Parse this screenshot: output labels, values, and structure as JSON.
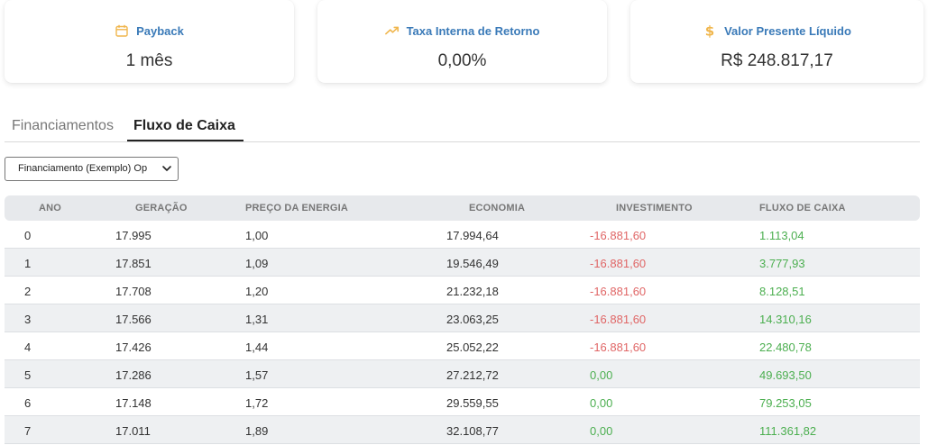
{
  "cards": [
    {
      "label": "Payback",
      "value": "1 mês",
      "icon": "calendar-icon",
      "icon_color": "#f0b64d"
    },
    {
      "label": "Taxa Interna de Retorno",
      "value": "0,00%",
      "icon": "trending-up-icon",
      "icon_color": "#f0b64d"
    },
    {
      "label": "Valor Presente Líquido",
      "value": "R$ 248.817,17",
      "icon": "dollar-icon",
      "icon_color": "#f0b64d"
    }
  ],
  "tabs": [
    {
      "label": "Financiamentos",
      "active": false
    },
    {
      "label": "Fluxo de Caixa",
      "active": true
    }
  ],
  "select": {
    "value": "Financiamento (Exemplo) Op"
  },
  "table": {
    "headers": [
      "ANO",
      "GERAÇÃO",
      "PREÇO DA ENERGIA",
      "ECONOMIA",
      "INVESTIMENTO",
      "FLUXO DE CAIXA"
    ],
    "rows": [
      [
        "0",
        "17.995",
        "1,00",
        "17.994,64",
        "-16.881,60",
        "1.113,04"
      ],
      [
        "1",
        "17.851",
        "1,09",
        "19.546,49",
        "-16.881,60",
        "3.777,93"
      ],
      [
        "2",
        "17.708",
        "1,20",
        "21.232,18",
        "-16.881,60",
        "8.128,51"
      ],
      [
        "3",
        "17.566",
        "1,31",
        "23.063,25",
        "-16.881,60",
        "14.310,16"
      ],
      [
        "4",
        "17.426",
        "1,44",
        "25.052,22",
        "-16.881,60",
        "22.480,78"
      ],
      [
        "5",
        "17.286",
        "1,57",
        "27.212,72",
        "0,00",
        "49.693,50"
      ],
      [
        "6",
        "17.148",
        "1,72",
        "29.559,55",
        "0,00",
        "79.253,05"
      ],
      [
        "7",
        "17.011",
        "1,89",
        "32.108,77",
        "0,00",
        "111.361,82"
      ]
    ]
  },
  "colors": {
    "label_blue": "#3a7ab8",
    "negative": "#e06666",
    "positive": "#4caf50",
    "accent": "#f0b64d"
  }
}
